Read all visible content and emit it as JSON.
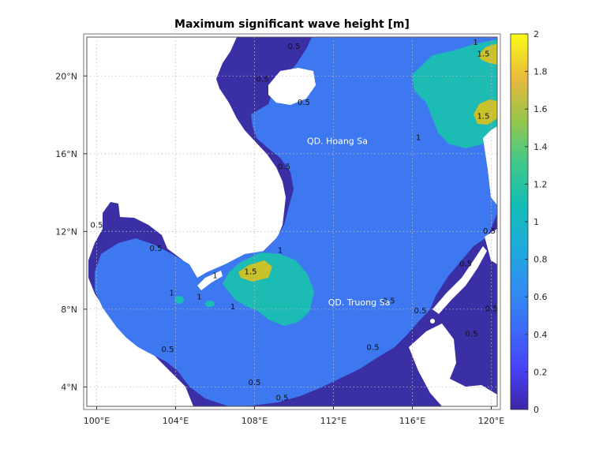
{
  "chart_data": {
    "type": "heatmap",
    "title": "Maximum significant wave height [m]",
    "xlim": [
      99.5,
      120.3
    ],
    "ylim": [
      3.0,
      22.0
    ],
    "xticks": [
      {
        "value": 100,
        "label": "100°E"
      },
      {
        "value": 104,
        "label": "104°E"
      },
      {
        "value": 108,
        "label": "108°E"
      },
      {
        "value": 112,
        "label": "112°E"
      },
      {
        "value": 116,
        "label": "116°E"
      },
      {
        "value": 120,
        "label": "120°E"
      }
    ],
    "yticks": [
      {
        "value": 4,
        "label": "4°N"
      },
      {
        "value": 8,
        "label": "8°N"
      },
      {
        "value": 12,
        "label": "12°N"
      },
      {
        "value": 16,
        "label": "16°N"
      },
      {
        "value": 20,
        "label": "20°N"
      }
    ],
    "grid": true,
    "colorbar": {
      "min": 0,
      "max": 2,
      "ticks": [
        "0",
        "0.2",
        "0.4",
        "0.6",
        "0.8",
        "1",
        "1.2",
        "1.4",
        "1.6",
        "1.8",
        "2"
      ],
      "colormap": [
        "#3e26a8",
        "#4743f8",
        "#2f7ef9",
        "#1aa9df",
        "#13bdb3",
        "#48cb86",
        "#a6c33f",
        "#f0ba3b",
        "#f9e31a",
        "#f9fb15"
      ]
    },
    "level_colors": {
      "lt_0.5": "#3b2fa6",
      "0.5_to_1": "#3d78f0",
      "1_to_1.5": "#1cbbb4",
      "gt_1.5": "#c9c12a",
      "land": "#ffffff"
    },
    "places": [
      {
        "name": "QD. Hoang Sa",
        "lon": 112.2,
        "lat": 16.5
      },
      {
        "name": "QD. Truong Sa",
        "lon": 113.3,
        "lat": 8.2
      }
    ],
    "contour_labels": [
      {
        "text": "0.5",
        "lon": 110.0,
        "lat": 21.4
      },
      {
        "text": "0.5",
        "lon": 108.4,
        "lat": 19.7
      },
      {
        "text": "0.5",
        "lon": 110.5,
        "lat": 18.5
      },
      {
        "text": "0.5",
        "lon": 109.5,
        "lat": 15.2
      },
      {
        "text": "0.5",
        "lon": 100.0,
        "lat": 12.2
      },
      {
        "text": "0.5",
        "lon": 103.0,
        "lat": 11.0
      },
      {
        "text": "0.5",
        "lon": 103.6,
        "lat": 5.8
      },
      {
        "text": "0.5",
        "lon": 108.0,
        "lat": 4.1
      },
      {
        "text": "0.5",
        "lon": 109.4,
        "lat": 3.3
      },
      {
        "text": "0.5",
        "lon": 114.0,
        "lat": 5.9
      },
      {
        "text": "0.5",
        "lon": 114.8,
        "lat": 8.3
      },
      {
        "text": "0.5",
        "lon": 116.4,
        "lat": 7.8
      },
      {
        "text": "0.5",
        "lon": 118.7,
        "lat": 10.2
      },
      {
        "text": "0.5",
        "lon": 119.0,
        "lat": 6.6
      },
      {
        "text": "0.5",
        "lon": 119.9,
        "lat": 11.9
      },
      {
        "text": "0.5",
        "lon": 120.0,
        "lat": 7.9
      },
      {
        "text": "1",
        "lon": 119.2,
        "lat": 21.6
      },
      {
        "text": "1.5",
        "lon": 119.6,
        "lat": 21.0
      },
      {
        "text": "1.5",
        "lon": 119.6,
        "lat": 17.8
      },
      {
        "text": "1",
        "lon": 116.3,
        "lat": 16.7
      },
      {
        "text": "1",
        "lon": 109.3,
        "lat": 10.9
      },
      {
        "text": "1",
        "lon": 106.0,
        "lat": 9.6
      },
      {
        "text": "1.5",
        "lon": 107.8,
        "lat": 9.8
      },
      {
        "text": "1",
        "lon": 106.9,
        "lat": 8.0
      },
      {
        "text": "1",
        "lon": 103.8,
        "lat": 8.7
      },
      {
        "text": "1",
        "lon": 105.2,
        "lat": 8.5
      }
    ]
  }
}
